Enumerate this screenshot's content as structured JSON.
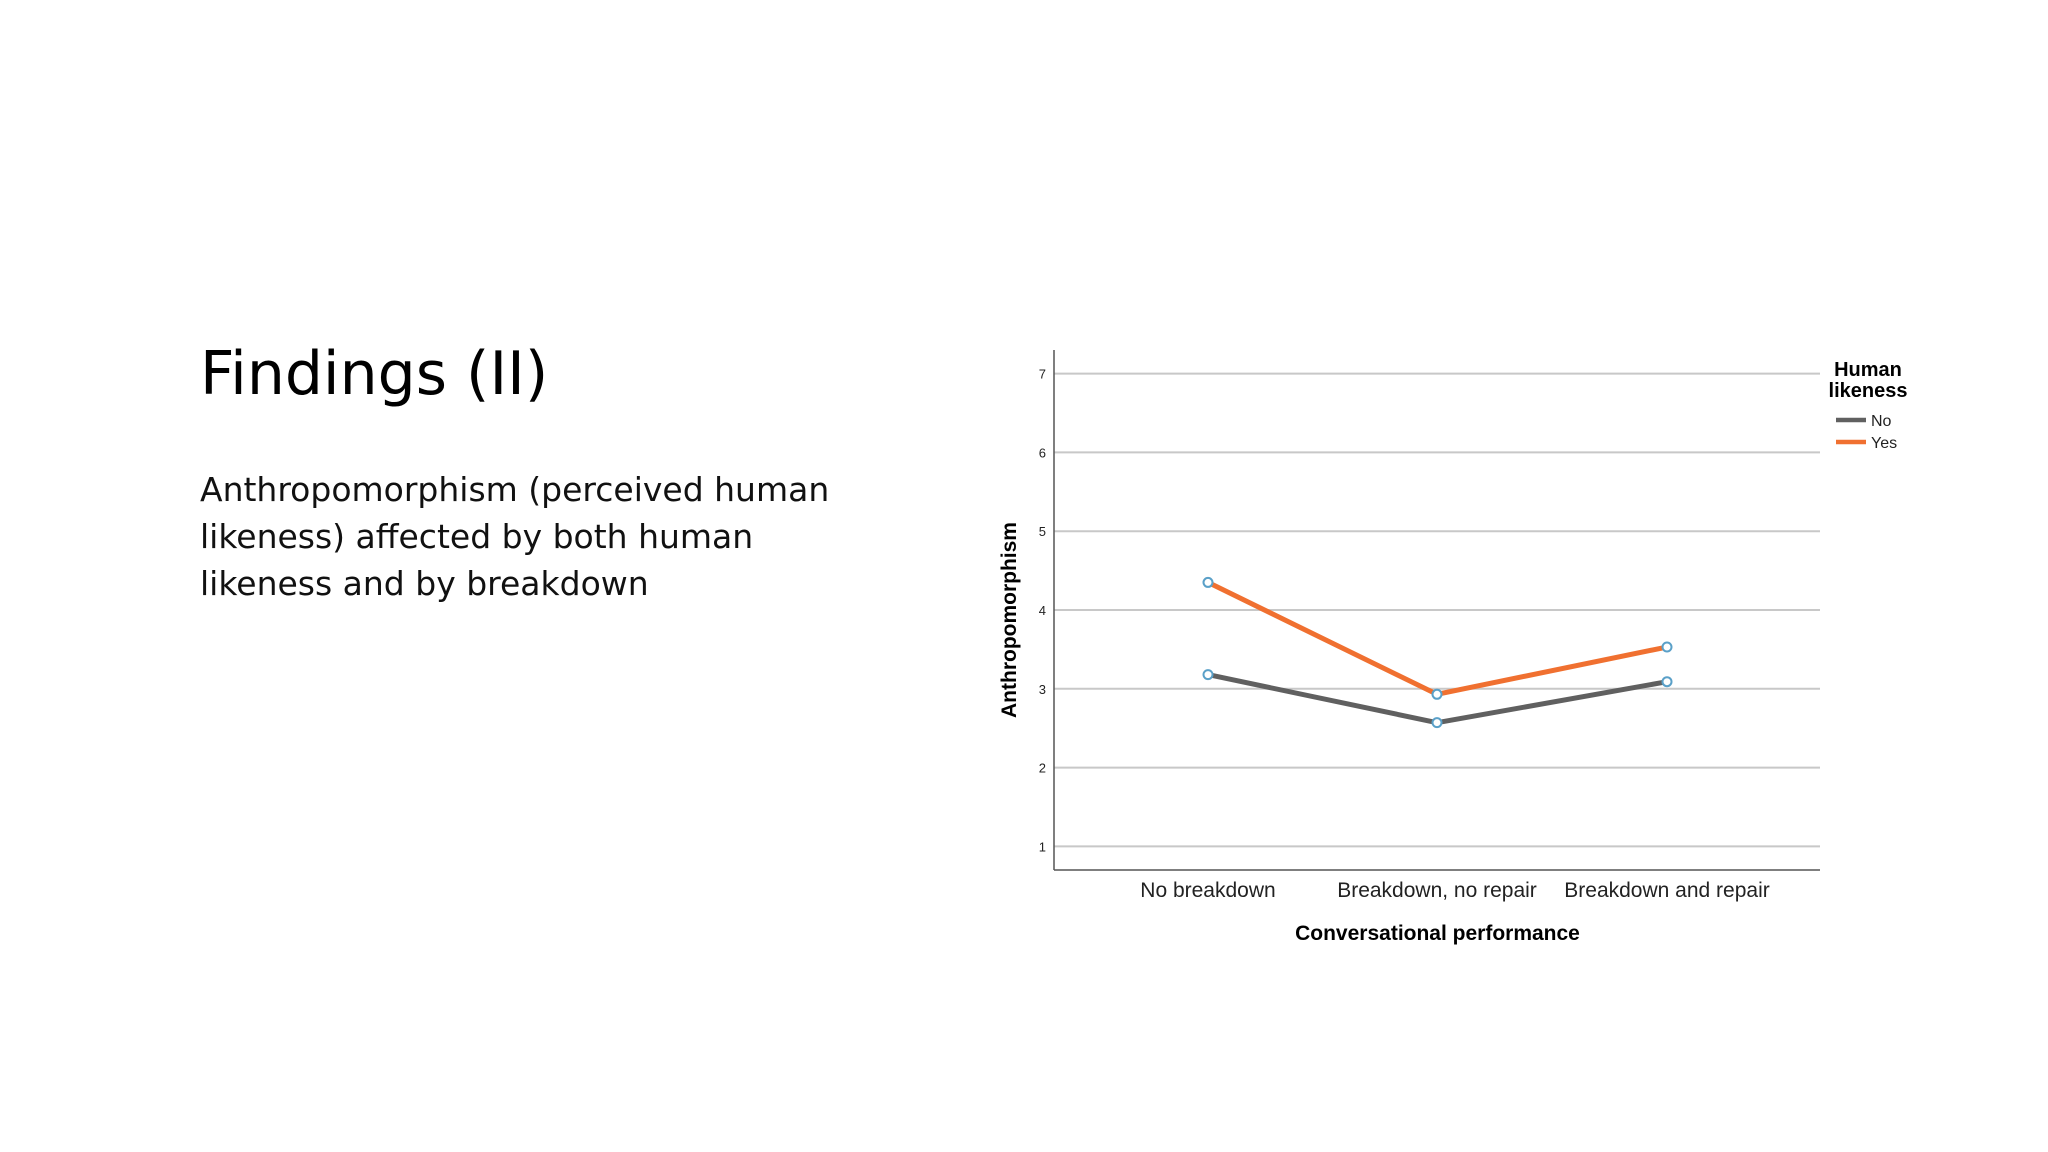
{
  "slide": {
    "title": "Findings (II)",
    "body": "Anthropomorphism (perceived human likeness) affected by both human likeness and by breakdown"
  },
  "chart_data": {
    "type": "line",
    "categories": [
      "No breakdown",
      "Breakdown, no repair",
      "Breakdown and repair"
    ],
    "series": [
      {
        "name": "No",
        "values": [
          3.18,
          2.57,
          3.09
        ],
        "color": "#606060"
      },
      {
        "name": "Yes",
        "values": [
          4.35,
          2.93,
          3.53
        ],
        "color": "#f07030"
      }
    ],
    "xlabel": "Conversational performance",
    "ylabel": "Anthropomorphism",
    "yticks": [
      1,
      2,
      3,
      4,
      5,
      6,
      7
    ],
    "ylim": [
      0.7,
      7.3
    ],
    "grid": true,
    "legend": {
      "title": "Human likeness",
      "title_lines": [
        "Human",
        "likeness"
      ],
      "position": "right"
    },
    "marker_color": "#5aa0c8"
  }
}
